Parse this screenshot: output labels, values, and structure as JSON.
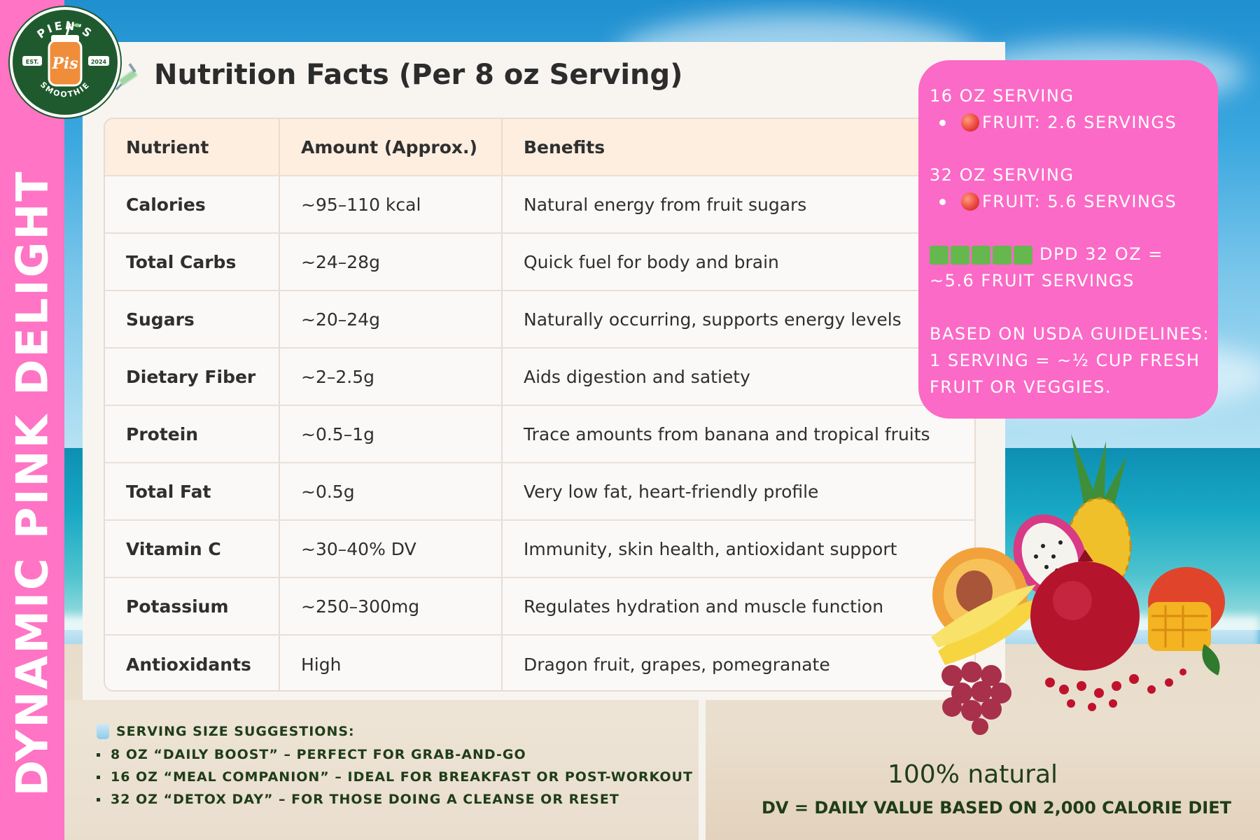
{
  "brand": {
    "name_arc_top": "PIEN'S",
    "name_arc_bottom": "SMOOTHIE",
    "mark": "Pis",
    "est_label": "EST.",
    "est_year": "2024"
  },
  "side_title": "DYNAMIC PINK DELIGHT",
  "nutrition": {
    "title": "Nutrition Facts (Per 8 oz Serving)",
    "headers": [
      "Nutrient",
      "Amount (Approx.)",
      "Benefits"
    ],
    "rows": [
      {
        "nutrient": "Calories",
        "amount": "~95–110 kcal",
        "benefit": "Natural energy from fruit sugars"
      },
      {
        "nutrient": "Total Carbs",
        "amount": "~24–28g",
        "benefit": "Quick fuel for body and brain"
      },
      {
        "nutrient": "Sugars",
        "amount": "~20–24g",
        "benefit": "Naturally occurring, supports energy levels"
      },
      {
        "nutrient": "Dietary Fiber",
        "amount": "~2–2.5g",
        "benefit": "Aids digestion and satiety"
      },
      {
        "nutrient": "Protein",
        "amount": "~0.5–1g",
        "benefit": "Trace amounts from banana and tropical fruits"
      },
      {
        "nutrient": "Total Fat",
        "amount": "~0.5g",
        "benefit": "Very low fat, heart-friendly profile"
      },
      {
        "nutrient": "Vitamin C",
        "amount": "~30–40% DV",
        "benefit": "Immunity, skin health, antioxidant support"
      },
      {
        "nutrient": "Potassium",
        "amount": "~250–300mg",
        "benefit": "Regulates hydration and muscle function"
      },
      {
        "nutrient": "Antioxidants",
        "amount": "High",
        "benefit": "Dragon fruit, grapes, pomegranate"
      }
    ]
  },
  "servings_box": {
    "s16_label": "16 OZ SERVING",
    "s16_fruit": "FRUIT: 2.6 SERVINGS",
    "s32_label": "32 OZ SERVING",
    "s32_fruit": "FRUIT: 5.6 SERVINGS",
    "dpd_line1": "DPD 32 OZ =",
    "dpd_line2": "~5.6 FRUIT SERVINGS",
    "usda_line1": "BASED ON USDA GUIDELINES:",
    "usda_line2": "1 SERVING = ~½ CUP FRESH",
    "usda_line3": "FRUIT OR VEGGIES.",
    "green_block_count": 5
  },
  "suggestions": {
    "heading": "SERVING SIZE SUGGESTIONS:",
    "items": [
      "8 OZ “DAILY BOOST” – PERFECT FOR GRAB-AND-GO",
      "16 OZ “MEAL COMPANION” – IDEAL FOR BREAKFAST OR POST-WORKOUT",
      "32 OZ “DETOX DAY” – FOR THOSE DOING A CLEANSE OR RESET"
    ]
  },
  "footer": {
    "natural": "100% natural",
    "dv_note": "DV = DAILY VALUE BASED ON 2,000 CALORIE DIET"
  },
  "colors": {
    "pink": "#ff74c4",
    "pink_box": "#fb6ac6",
    "dark_green": "#1f5a2e",
    "text_green": "#1f3d19",
    "table_header": "#fdeee0"
  }
}
